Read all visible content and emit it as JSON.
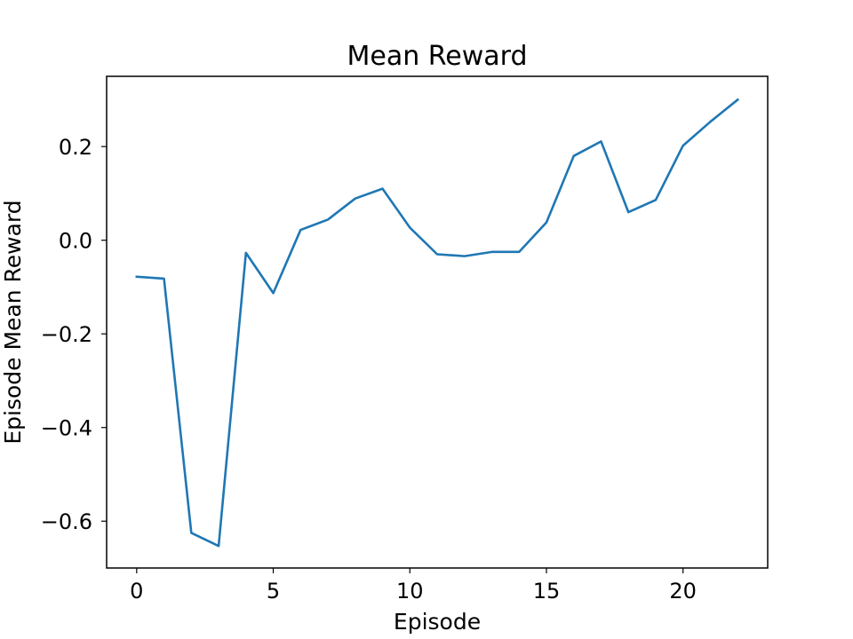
{
  "chart_data": {
    "type": "line",
    "title": "Mean Reward",
    "xlabel": "Episode",
    "ylabel": "Episode Mean Reward",
    "xlim": [
      -1.1,
      23.1
    ],
    "ylim": [
      -0.7,
      0.35
    ],
    "xticks": [
      0,
      5,
      10,
      15,
      20
    ],
    "xtick_labels": [
      "0",
      "5",
      "10",
      "15",
      "20"
    ],
    "yticks": [
      -0.6,
      -0.4,
      -0.2,
      0.0,
      0.2
    ],
    "ytick_labels": [
      "−0.6",
      "−0.4",
      "−0.2",
      "0.0",
      "0.2"
    ],
    "grid": false,
    "series": [
      {
        "color": "#1f77b4",
        "x": [
          0,
          1,
          2,
          3,
          4,
          5,
          6,
          7,
          8,
          9,
          10,
          11,
          12,
          13,
          14,
          15,
          16,
          17,
          18,
          19,
          20,
          21,
          22
        ],
        "y": [
          -0.078,
          -0.082,
          -0.625,
          -0.653,
          -0.027,
          -0.113,
          0.022,
          0.044,
          0.089,
          0.11,
          0.027,
          -0.03,
          -0.034,
          -0.025,
          -0.025,
          0.038,
          0.18,
          0.211,
          0.06,
          0.086,
          0.202,
          0.253,
          0.3
        ]
      }
    ]
  }
}
